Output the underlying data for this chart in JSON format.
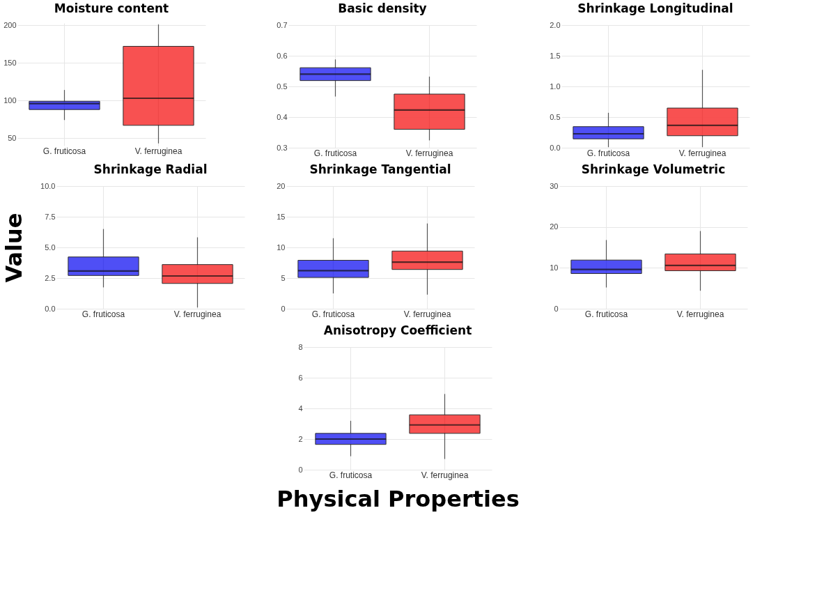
{
  "chart_data": [
    {
      "type": "box",
      "title": "Moisture content",
      "categories": [
        "G. fruticosa",
        "V. ferruginea"
      ],
      "colors": [
        "#4646f5",
        "#f84848"
      ],
      "boxes": [
        {
          "low": 74,
          "q1": 88,
          "median": 96,
          "q3": 99,
          "high": 114
        },
        {
          "low": 43,
          "q1": 67,
          "median": 103,
          "q3": 172,
          "high": 201
        }
      ],
      "ylim": [
        40,
        203
      ],
      "yticks": [
        50,
        100,
        150,
        200
      ],
      "grid": true
    },
    {
      "type": "box",
      "title": "Basic density",
      "categories": [
        "G. fruticosa",
        "V. ferruginea"
      ],
      "colors": [
        "#4646f5",
        "#f84848"
      ],
      "boxes": [
        {
          "low": 0.467,
          "q1": 0.519,
          "median": 0.54,
          "q3": 0.561,
          "high": 0.588
        },
        {
          "low": 0.324,
          "q1": 0.36,
          "median": 0.423,
          "q3": 0.475,
          "high": 0.532
        }
      ],
      "ylim": [
        0.3,
        0.7
      ],
      "yticks": [
        0.3,
        0.4,
        0.5,
        0.6,
        0.7
      ],
      "grid": true
    },
    {
      "type": "box",
      "title": "Shrinkage Longitudinal",
      "categories": [
        "G. fruticosa",
        "V. ferruginea"
      ],
      "colors": [
        "#4646f5",
        "#f84848"
      ],
      "boxes": [
        {
          "low": 0.01,
          "q1": 0.145,
          "median": 0.227,
          "q3": 0.344,
          "high": 0.57
        },
        {
          "low": 0.01,
          "q1": 0.196,
          "median": 0.365,
          "q3": 0.647,
          "high": 1.27
        }
      ],
      "ylim": [
        0,
        2
      ],
      "yticks": [
        {
          "value": 0,
          "label": "0.0"
        },
        0.5,
        {
          "value": 1,
          "label": "1.0"
        },
        1.5,
        {
          "value": 2,
          "label": "2.0"
        }
      ],
      "grid": true
    },
    {
      "type": "box",
      "title": "Shrinkage Radial",
      "ylabel": "Value",
      "categories": [
        "G. fruticosa",
        "V. ferruginea"
      ],
      "colors": [
        "#4646f5",
        "#f84848"
      ],
      "boxes": [
        {
          "low": 1.74,
          "q1": 2.71,
          "median": 3.07,
          "q3": 4.22,
          "high": 6.5
        },
        {
          "low": 0.1,
          "q1": 2.06,
          "median": 2.67,
          "q3": 3.6,
          "high": 5.82
        }
      ],
      "ylim": [
        0,
        10
      ],
      "yticks": [
        {
          "value": 0,
          "label": "0.0"
        },
        2.5,
        {
          "value": 5,
          "label": "5.0"
        },
        7.5,
        {
          "value": 10,
          "label": "10.0"
        }
      ],
      "grid": true
    },
    {
      "type": "box",
      "title": "Shrinkage Tangential",
      "categories": [
        "G. fruticosa",
        "V. ferruginea"
      ],
      "colors": [
        "#4646f5",
        "#f84848"
      ],
      "boxes": [
        {
          "low": 2.5,
          "q1": 5.1,
          "median": 6.2,
          "q3": 7.9,
          "high": 11.5
        },
        {
          "low": 2.3,
          "q1": 6.4,
          "median": 7.6,
          "q3": 9.4,
          "high": 13.9
        }
      ],
      "ylim": [
        0,
        20
      ],
      "yticks": [
        0,
        5,
        10,
        15,
        20
      ],
      "grid": true
    },
    {
      "type": "box",
      "title": "Shrinkage Volumetric",
      "categories": [
        "G. fruticosa",
        "V. ferruginea"
      ],
      "colors": [
        "#4646f5",
        "#f84848"
      ],
      "boxes": [
        {
          "low": 5.2,
          "q1": 8.6,
          "median": 9.6,
          "q3": 11.9,
          "high": 16.8
        },
        {
          "low": 4.4,
          "q1": 9.3,
          "median": 10.6,
          "q3": 13.4,
          "high": 19
        }
      ],
      "ylim": [
        0,
        30
      ],
      "yticks": [
        0,
        10,
        20,
        30
      ],
      "grid": true
    },
    {
      "type": "box",
      "title": "Anisotropy Coefficient",
      "xlabel": "Physical Properties",
      "categories": [
        "G. fruticosa",
        "V. ferruginea"
      ],
      "colors": [
        "#4646f5",
        "#f84848"
      ],
      "boxes": [
        {
          "low": 0.88,
          "q1": 1.65,
          "median": 2,
          "q3": 2.37,
          "high": 3.19
        },
        {
          "low": 0.7,
          "q1": 2.37,
          "median": 2.92,
          "q3": 3.58,
          "high": 4.94
        }
      ],
      "ylim": [
        0,
        8
      ],
      "yticks": [
        0,
        2,
        4,
        6,
        8
      ],
      "grid": true
    }
  ]
}
